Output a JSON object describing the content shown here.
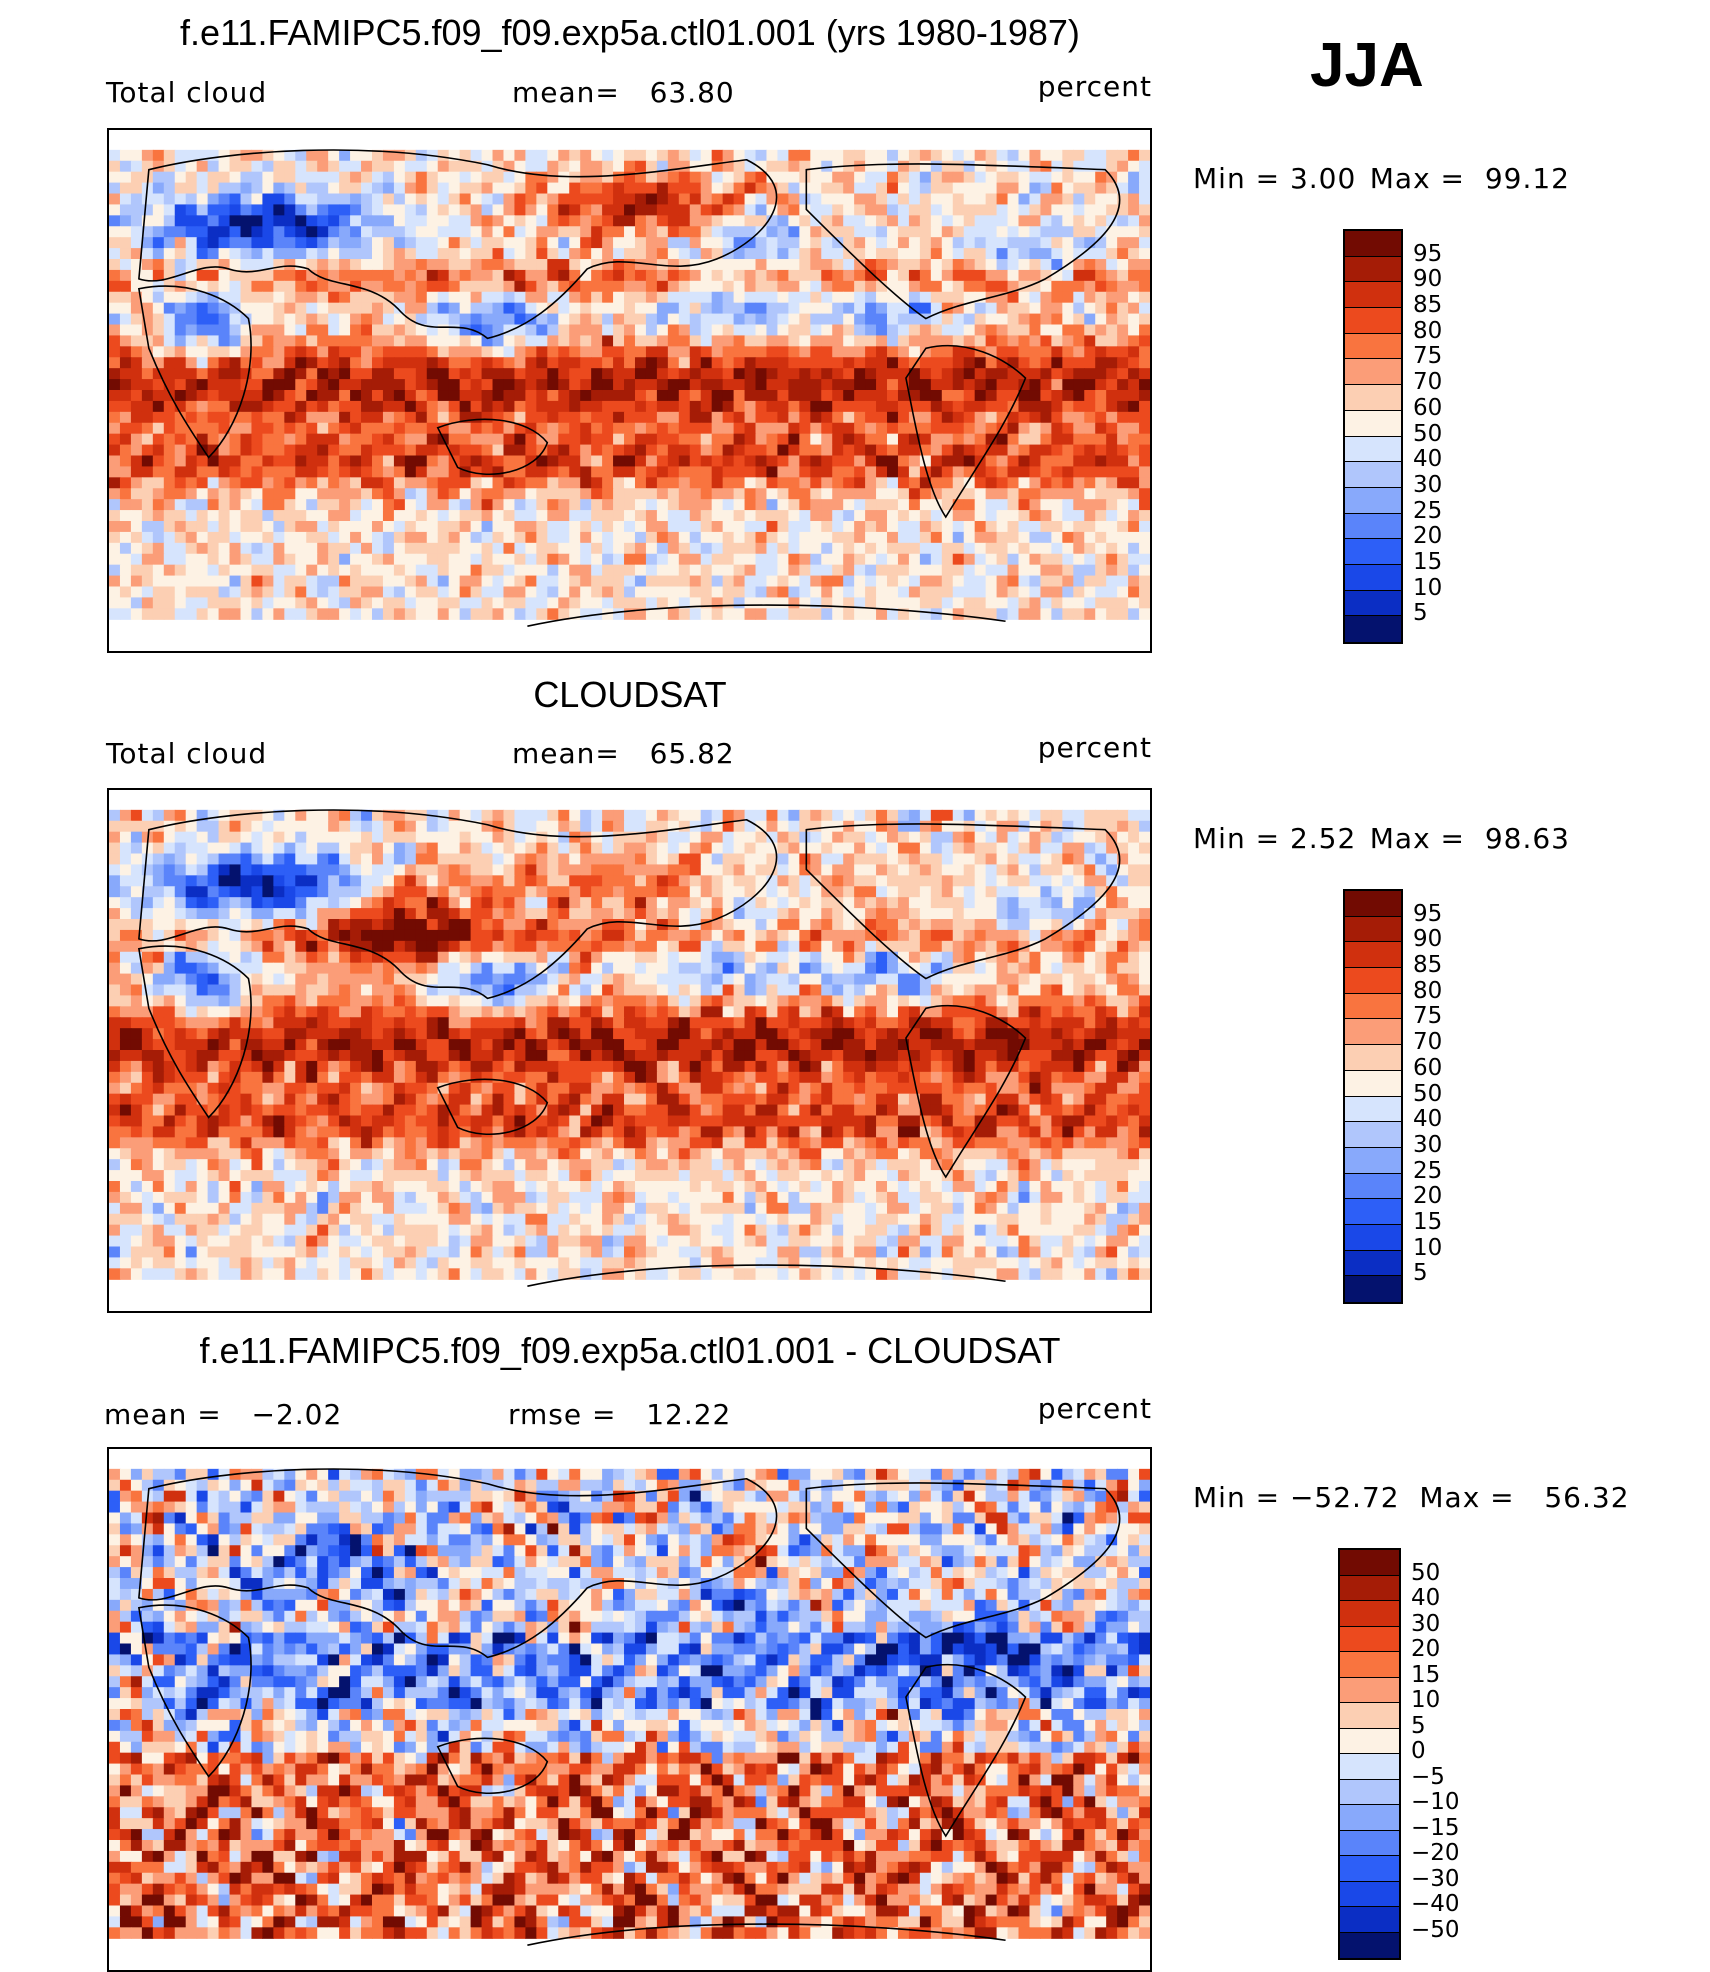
{
  "season": "JJA",
  "colors": {
    "cloud": [
      "#04126e",
      "#0b2ec4",
      "#1a48e8",
      "#2d5ff7",
      "#5a84fa",
      "#88a9fb",
      "#b0c6fc",
      "#d6e4fd",
      "#fdf2e4",
      "#fccfb3",
      "#fb9d78",
      "#f9743f",
      "#ec4a1e",
      "#d0300e",
      "#a51c06",
      "#720b02"
    ],
    "diff": [
      "#04126e",
      "#0b2ec4",
      "#1a48e8",
      "#2d5ff7",
      "#5a84fa",
      "#88a9fb",
      "#b0c6fc",
      "#d6e4fd",
      "#fdf2e4",
      "#fccfb3",
      "#fb9d78",
      "#f9743f",
      "#ec4a1e",
      "#d0300e",
      "#a51c06",
      "#720b02"
    ]
  },
  "chart_data": [
    {
      "type": "heatmap",
      "title": "f.e11.FAMIPC5.f09_f09.exp5a.ctl01.001 (yrs 1980-1987)",
      "left_label": "Total cloud",
      "mean_label": "mean=",
      "mean_value": "63.80",
      "units": "percent",
      "min_label": "Min =",
      "min_value": "3.00",
      "max_label": "Max =",
      "max_value": "99.12",
      "colorbar_levels": [
        "95",
        "90",
        "85",
        "80",
        "75",
        "70",
        "60",
        "50",
        "40",
        "30",
        "25",
        "20",
        "15",
        "10",
        "5"
      ]
    },
    {
      "type": "heatmap",
      "title": "CLOUDSAT",
      "left_label": "Total cloud",
      "mean_label": "mean=",
      "mean_value": "65.82",
      "units": "percent",
      "min_label": "Min =",
      "min_value": "2.52",
      "max_label": "Max =",
      "max_value": "98.63",
      "colorbar_levels": [
        "95",
        "90",
        "85",
        "80",
        "75",
        "70",
        "60",
        "50",
        "40",
        "30",
        "25",
        "20",
        "15",
        "10",
        "5"
      ]
    },
    {
      "type": "heatmap",
      "title": "f.e11.FAMIPC5.f09_f09.exp5a.ctl01.001 - CLOUDSAT",
      "left_label": "mean =",
      "mean_value": "−2.02",
      "rmse_label": "rmse =",
      "rmse_value": "12.22",
      "units": "percent",
      "min_label": "Min =",
      "min_value": "−52.72",
      "max_label": "Max =",
      "max_value": "56.32",
      "colorbar_levels": [
        "50",
        "40",
        "30",
        "20",
        "15",
        "10",
        "5",
        "0",
        "−5",
        "−10",
        "−15",
        "−20",
        "−30",
        "−40",
        "−50"
      ]
    }
  ]
}
